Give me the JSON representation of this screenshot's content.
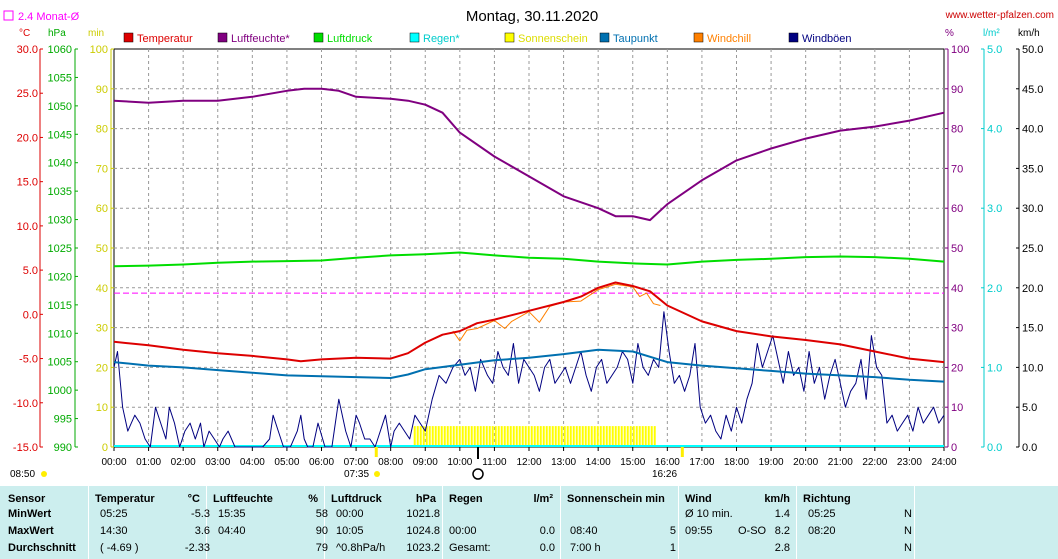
{
  "header": {
    "legend_note": "2.4 Monat-Ø",
    "date_title": "Montag, 30.11.2020",
    "site": "www.wetter-pfalzen.com",
    "left_units": [
      "°C",
      "hPa",
      "min"
    ],
    "right_units": [
      "%",
      "l/m²",
      "km/h"
    ]
  },
  "legend": [
    {
      "label": "Temperatur",
      "color": "#dd0000"
    },
    {
      "label": "Luftfeuchte*",
      "color": "#800080"
    },
    {
      "label": "Luftdruck",
      "color": "#00dd00"
    },
    {
      "label": "Regen*",
      "color": "#00ffff"
    },
    {
      "label": "Sonnenschein",
      "color": "#ffff00"
    },
    {
      "label": "Taupunkt",
      "color": "#0070b0"
    },
    {
      "label": "Windchill",
      "color": "#ff8000"
    },
    {
      "label": "Windböen",
      "color": "#000080"
    }
  ],
  "chart_data": {
    "type": "line",
    "title": "Montag, 30.11.2020",
    "x_ticks": [
      "00:00",
      "01:00",
      "02:00",
      "03:00",
      "04:00",
      "05:00",
      "06:00",
      "07:00",
      "08:00",
      "09:00",
      "10:00",
      "11:00",
      "12:00",
      "13:00",
      "14:00",
      "15:00",
      "16:00",
      "17:00",
      "18:00",
      "19:00",
      "20:00",
      "21:00",
      "22:00",
      "23:00",
      "24:00"
    ],
    "x_range_hours": [
      0,
      24
    ],
    "axes": {
      "temperature_c": {
        "range": [
          -15,
          30
        ],
        "ticks": [
          "30.0",
          "25.0",
          "20.0",
          "15.0",
          "10.0",
          "5.0",
          "0.0",
          "-5.0",
          "-10.0",
          "-15.0"
        ],
        "color": "#dd0000"
      },
      "pressure_hpa": {
        "range": [
          990,
          1060
        ],
        "ticks": [
          "1060",
          "1055",
          "1050",
          "1045",
          "1040",
          "1035",
          "1030",
          "1025",
          "1020",
          "1015",
          "1010",
          "1005",
          "1000",
          "995",
          "990"
        ],
        "color": "#00aa00"
      },
      "sunshine_min": {
        "range": [
          0,
          100
        ],
        "ticks": [
          "100",
          "90",
          "80",
          "70",
          "60",
          "50",
          "40",
          "30",
          "20",
          "10",
          "0"
        ],
        "color": "#cccc00"
      },
      "humidity_pct": {
        "range": [
          0,
          100
        ],
        "ticks": [
          "100",
          "90",
          "80",
          "70",
          "60",
          "50",
          "40",
          "30",
          "20",
          "10",
          "0"
        ],
        "color": "#800080"
      },
      "rain_lm2": {
        "range": [
          0,
          5
        ],
        "ticks": [
          "5.0",
          "4.0",
          "3.0",
          "2.0",
          "1.0",
          "0.0"
        ],
        "color": "#00cccc"
      },
      "wind_kmh": {
        "range": [
          0,
          50
        ],
        "ticks": [
          "50.0",
          "45.0",
          "40.0",
          "35.0",
          "30.0",
          "25.0",
          "20.0",
          "15.0",
          "10.0",
          "5.0",
          "0.0"
        ],
        "color": "#000000"
      }
    },
    "series": [
      {
        "name": "Luftfeuchte*",
        "axis": "humidity_pct",
        "color": "#800080",
        "x": [
          0,
          1,
          2,
          3,
          4,
          5,
          5.5,
          6,
          6.5,
          7,
          8,
          8.5,
          9,
          9.5,
          10,
          11,
          12,
          13,
          14,
          14.5,
          15,
          15.5,
          16,
          17,
          18,
          19,
          20,
          21,
          22,
          23,
          24
        ],
        "y": [
          87,
          86.5,
          87,
          87,
          88,
          89.5,
          90,
          90,
          89.5,
          88,
          87.5,
          87,
          86,
          84,
          79,
          73,
          68,
          63,
          60,
          58,
          58,
          57,
          61,
          67,
          72,
          75,
          77.5,
          79.5,
          80.5,
          82,
          84
        ]
      },
      {
        "name": "Luftdruck",
        "axis": "pressure_hpa",
        "color": "#00dd00",
        "x": [
          0,
          1,
          2,
          3,
          4,
          5,
          6,
          7,
          8,
          9,
          10,
          11,
          12,
          13,
          14,
          15,
          16,
          17,
          18,
          19,
          20,
          21,
          22,
          23,
          24
        ],
        "y": [
          1021.8,
          1021.9,
          1022.1,
          1022.4,
          1022.6,
          1022.7,
          1022.8,
          1023.3,
          1023.7,
          1023.9,
          1024.2,
          1023.7,
          1023.3,
          1023.1,
          1022.6,
          1022.3,
          1022.1,
          1022.6,
          1022.9,
          1023.1,
          1023.4,
          1023.5,
          1023.4,
          1023.1,
          1022.6
        ]
      },
      {
        "name": "Temperatur",
        "axis": "temperature_c",
        "color": "#dd0000",
        "x": [
          0,
          1,
          2,
          3,
          4,
          5,
          5.4,
          6,
          7,
          8,
          8.5,
          9,
          9.5,
          10,
          10.5,
          11,
          12,
          13,
          13.5,
          14,
          14.5,
          15,
          15.5,
          16,
          17,
          18,
          19,
          20,
          21,
          22,
          23,
          24
        ],
        "y": [
          -3.1,
          -3.5,
          -4.0,
          -4.4,
          -4.7,
          -5.1,
          -5.3,
          -5.1,
          -4.9,
          -5.0,
          -4.4,
          -3.2,
          -2.3,
          -1.9,
          -1.0,
          -0.6,
          0.4,
          1.4,
          2.0,
          3.0,
          3.6,
          3.2,
          2.6,
          1.0,
          -0.8,
          -1.9,
          -2.5,
          -2.9,
          -3.4,
          -4.2,
          -5.0,
          -5.4
        ]
      },
      {
        "name": "Taupunkt",
        "axis": "temperature_c",
        "color": "#0070b0",
        "x": [
          0,
          1,
          2,
          3,
          4,
          5,
          6,
          7,
          8,
          8.5,
          9,
          10,
          11,
          12,
          13,
          14,
          15,
          16,
          17,
          18,
          19,
          20,
          21,
          22,
          23,
          24
        ],
        "y": [
          -5.4,
          -5.8,
          -6.0,
          -6.3,
          -6.6,
          -6.9,
          -7.0,
          -7.1,
          -7.2,
          -6.8,
          -6.2,
          -5.7,
          -5.2,
          -4.9,
          -4.5,
          -4.0,
          -4.2,
          -5.4,
          -5.8,
          -6.1,
          -6.4,
          -6.7,
          -6.9,
          -7.1,
          -7.4,
          -7.6
        ]
      },
      {
        "name": "Windchill",
        "axis": "temperature_c",
        "color": "#ff8000",
        "x": [
          9.8,
          10.0,
          10.2,
          10.5,
          11.0,
          11.3,
          11.5,
          12.0,
          12.3,
          12.6,
          13.0,
          13.5,
          14.0,
          14.5,
          15.0,
          15.2,
          15.4,
          15.6,
          15.8
        ],
        "y": [
          -1.9,
          -3.0,
          -1.8,
          -1.6,
          -0.7,
          -1.6,
          -0.8,
          0.3,
          -0.9,
          0.9,
          1.4,
          1.5,
          2.8,
          3.4,
          3.1,
          2.0,
          2.4,
          1.2,
          1.0
        ]
      },
      {
        "name": "Windböen",
        "axis": "wind_kmh",
        "color": "#000080",
        "x": [
          0,
          0.1,
          0.25,
          0.4,
          0.6,
          0.75,
          0.9,
          1.05,
          1.2,
          1.35,
          1.5,
          1.6,
          1.75,
          1.9,
          2.05,
          2.2,
          2.35,
          2.5,
          2.6,
          2.75,
          2.9,
          3.05,
          3.15,
          3.3,
          3.5,
          3.7,
          3.9,
          4.1,
          4.3,
          4.5,
          4.6,
          4.75,
          4.9,
          5.1,
          5.3,
          5.4,
          5.5,
          5.6,
          5.75,
          5.9,
          6.1,
          6.3,
          6.5,
          6.7,
          6.85,
          7.0,
          7.1,
          7.25,
          7.4,
          7.55,
          7.7,
          7.85,
          8.0,
          8.1,
          8.25,
          8.4,
          8.55,
          8.7,
          8.85,
          9.0,
          9.2,
          9.4,
          9.6,
          9.8,
          10.0,
          10.15,
          10.3,
          10.45,
          10.6,
          10.8,
          10.95,
          11.1,
          11.25,
          11.4,
          11.55,
          11.7,
          11.85,
          12.0,
          12.15,
          12.3,
          12.45,
          12.6,
          12.75,
          12.9,
          13.05,
          13.2,
          13.35,
          13.5,
          13.65,
          13.8,
          13.95,
          14.1,
          14.25,
          14.4,
          14.55,
          14.7,
          14.85,
          15.0,
          15.15,
          15.3,
          15.45,
          15.6,
          15.75,
          15.9,
          16.05,
          16.2,
          16.35,
          16.5,
          16.65,
          16.8,
          16.95,
          17.1,
          17.25,
          17.4,
          17.55,
          17.7,
          17.85,
          18.0,
          18.15,
          18.3,
          18.45,
          18.6,
          18.75,
          18.9,
          19.05,
          19.2,
          19.35,
          19.5,
          19.65,
          19.8,
          19.95,
          20.1,
          20.25,
          20.4,
          20.55,
          20.7,
          20.85,
          21.0,
          21.15,
          21.3,
          21.45,
          21.6,
          21.75,
          21.9,
          22.05,
          22.2,
          22.35,
          22.5,
          22.65,
          22.8,
          22.95,
          23.1,
          23.25,
          23.4,
          23.55,
          23.7,
          23.85,
          24.0
        ],
        "y": [
          10,
          12,
          5,
          2,
          4,
          3,
          1,
          0,
          5,
          3,
          1,
          5,
          3,
          0,
          2,
          3,
          1,
          3,
          0,
          2,
          1,
          0,
          1,
          2,
          0,
          0,
          0,
          0,
          0,
          1,
          4,
          2,
          0,
          0,
          2,
          4,
          1,
          0,
          0,
          3,
          0,
          0,
          6,
          2,
          0,
          4,
          3,
          1,
          1,
          0,
          2,
          4,
          0,
          2,
          3,
          2,
          1,
          4,
          3,
          2,
          6,
          9,
          8,
          10,
          11,
          9,
          10,
          7,
          11,
          9,
          8,
          12,
          10,
          9,
          13,
          8,
          11,
          10,
          9,
          7,
          10,
          11,
          8,
          9,
          10,
          8,
          10,
          12,
          9,
          7,
          10,
          11,
          8,
          9,
          10,
          12,
          11,
          8,
          13,
          10,
          9,
          11,
          10,
          17,
          12,
          8,
          9,
          7,
          9,
          13,
          5,
          3,
          4,
          2,
          1,
          4,
          2,
          5,
          3,
          6,
          8,
          13,
          10,
          12,
          14,
          11,
          8,
          12,
          9,
          10,
          7,
          12,
          8,
          10,
          6,
          9,
          11,
          8,
          5,
          7,
          8,
          11,
          6,
          14,
          10,
          9,
          3,
          4,
          2,
          3,
          4,
          2,
          5,
          3,
          4,
          5,
          3,
          4
        ]
      }
    ],
    "sunshine_block": {
      "from": "08:40",
      "to": "15:40"
    },
    "monthly_avg_line_c": 2.4,
    "sunrise": "07:35",
    "sunset": "16:26",
    "left_corner_time": "08:50"
  },
  "table": {
    "header": {
      "sensor": "Sensor",
      "temp": "Temperatur",
      "temp_unit": "°C",
      "hum": "Luftfeuchte",
      "hum_unit": "%",
      "press": "Luftdruck",
      "press_unit": "hPa",
      "rain": "Regen",
      "rain_unit": "l/m²",
      "sun": "Sonnenschein min",
      "wind": "Wind",
      "wind_unit": "km/h",
      "dir": "Richtung"
    },
    "rows": [
      {
        "label": "MinWert",
        "t_time": "05:25",
        "t_val": "-5.3",
        "h_time": "15:35",
        "h_val": "58",
        "p_time": "00:00",
        "p_val": "1021.8",
        "r_time": "",
        "r_val": "",
        "s_time": "",
        "s_val": "",
        "w_time": "Ø 10 min.",
        "w_dir": "",
        "w_val": "1.4",
        "d_time": "05:25",
        "d_val": "N"
      },
      {
        "label": "MaxWert",
        "t_time": "14:30",
        "t_val": "3.6",
        "h_time": "04:40",
        "h_val": "90",
        "p_time": "10:05",
        "p_val": "1024.8",
        "r_time": "00:00",
        "r_val": "0.0",
        "s_time": "08:40",
        "s_val": "5",
        "w_time": "09:55",
        "w_dir": "O-SO",
        "w_val": "8.2",
        "d_time": "08:20",
        "d_val": "N"
      },
      {
        "label": "Durchschnitt",
        "t_time": "( -4.69 )",
        "t_val": "-2.33",
        "h_time": "",
        "h_val": "79",
        "p_time": "^0.8hPa/h",
        "p_val": "1023.2",
        "r_time": "Gesamt:",
        "r_val": "0.0",
        "s_time": "7:00 h",
        "s_val": "1",
        "w_time": "",
        "w_dir": "",
        "w_val": "2.8",
        "d_time": "",
        "d_val": "N"
      }
    ]
  }
}
